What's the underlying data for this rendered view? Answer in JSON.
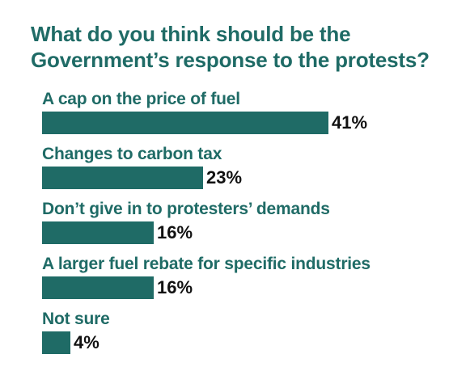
{
  "chart_data": {
    "type": "bar",
    "orientation": "horizontal",
    "title": "What do you think should be the Government’s response to the protests?",
    "categories": [
      "A cap on the price of fuel",
      "Changes to carbon tax",
      "Don’t give in to protesters’ demands",
      "A larger fuel rebate for specific industries",
      "Not sure"
    ],
    "values": [
      41,
      23,
      16,
      16,
      4
    ],
    "value_labels": [
      "41%",
      "23%",
      "16%",
      "16%",
      "4%"
    ],
    "xlim": [
      0,
      41
    ],
    "grid": false,
    "bar_color": "#1f6b66",
    "title_color": "#1f6b66",
    "label_color": "#1f6b66",
    "value_color": "#111111"
  }
}
